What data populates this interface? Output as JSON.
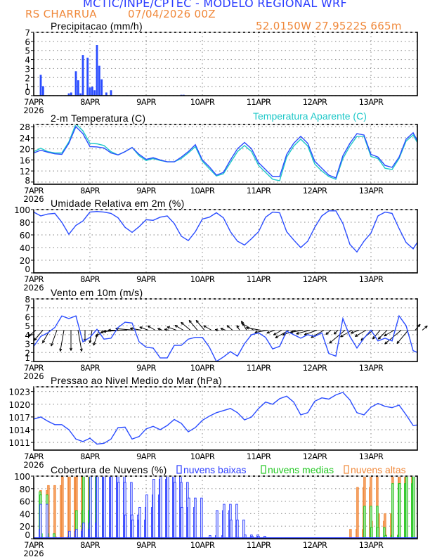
{
  "header": {
    "title": "MCTIC/INPE/CPTEC - MODELO REGIONAL WRF",
    "station": "RS CHARRUA",
    "run": "07/04/2026 00Z",
    "location": "52.0150W 27.9522S 665m"
  },
  "colors": {
    "title": "#2a3cff",
    "orange": "#f0883a",
    "series_blue": "#2a4cff",
    "apparent_cyan": "#1ec8c8",
    "low_clouds": "#2a3cff",
    "mid_clouds": "#22c822",
    "high_clouds": "#f0883a",
    "grid": "#9a9a9a"
  },
  "x_axis": {
    "tick_labels": [
      "7APR",
      "8APR",
      "9APR",
      "10APR",
      "11APR",
      "12APR",
      "13APR"
    ],
    "year": "2026"
  },
  "times": [
    "07APR 00Z",
    "07APR 03Z",
    "07APR 06Z",
    "07APR 09Z",
    "07APR 12Z",
    "07APR 15Z",
    "07APR 18Z",
    "07APR 21Z",
    "08APR 00Z",
    "08APR 03Z",
    "08APR 06Z",
    "08APR 09Z",
    "08APR 12Z",
    "08APR 15Z",
    "08APR 18Z",
    "08APR 21Z",
    "09APR 00Z",
    "09APR 03Z",
    "09APR 06Z",
    "09APR 09Z",
    "09APR 12Z",
    "09APR 15Z",
    "09APR 18Z",
    "09APR 21Z",
    "10APR 00Z",
    "10APR 03Z",
    "10APR 06Z",
    "10APR 09Z",
    "10APR 12Z",
    "10APR 15Z",
    "10APR 18Z",
    "10APR 21Z",
    "11APR 00Z",
    "11APR 03Z",
    "11APR 06Z",
    "11APR 09Z",
    "11APR 12Z",
    "11APR 15Z",
    "11APR 18Z",
    "11APR 21Z",
    "12APR 00Z",
    "12APR 03Z",
    "12APR 06Z",
    "12APR 09Z",
    "12APR 12Z",
    "12APR 15Z",
    "12APR 18Z",
    "12APR 21Z",
    "13APR 00Z",
    "13APR 03Z",
    "13APR 06Z",
    "13APR 09Z",
    "13APR 12Z",
    "13APR 15Z",
    "13APR 18Z",
    "13APR 21Z"
  ],
  "chart_data": [
    {
      "id": "precip",
      "type": "bar",
      "title": "Precipitacao (mm/h)",
      "ylim": [
        0,
        7
      ],
      "yticks": [
        "0",
        "1",
        "2",
        "3",
        "4",
        "5",
        "6",
        "7"
      ],
      "grid": true,
      "points": [
        {
          "time": "07APR 03Z",
          "value": 2.3
        },
        {
          "time": "07APR 04Z",
          "value": 1.05
        },
        {
          "time": "07APR 15Z",
          "value": 0.25
        },
        {
          "time": "07APR 16Z",
          "value": 0.35
        },
        {
          "time": "07APR 18Z",
          "value": 2.7
        },
        {
          "time": "07APR 19Z",
          "value": 1.7
        },
        {
          "time": "07APR 20Z",
          "value": 0.25
        },
        {
          "time": "07APR 21Z",
          "value": 4.5
        },
        {
          "time": "07APR 23Z",
          "value": 4.2
        },
        {
          "time": "08APR 00Z",
          "value": 0.9
        },
        {
          "time": "08APR 01Z",
          "value": 1.0
        },
        {
          "time": "08APR 02Z",
          "value": 0.6
        },
        {
          "time": "08APR 03Z",
          "value": 5.6
        },
        {
          "time": "08APR 04Z",
          "value": 3.3
        },
        {
          "time": "08APR 05Z",
          "value": 1.8
        },
        {
          "time": "08APR 07Z",
          "value": 0.35
        },
        {
          "time": "08APR 09Z",
          "value": 0.6
        },
        {
          "time": "08APR 16Z",
          "value": 0.05
        },
        {
          "time": "09APR 15Z",
          "value": 0.1
        },
        {
          "time": "09APR 16Z",
          "value": 0.1
        }
      ]
    },
    {
      "id": "temperature",
      "type": "line",
      "title": "2-m Temperatura (C)",
      "ylim": [
        7.2,
        28.8
      ],
      "yticks": [
        "8",
        "12",
        "16",
        "20",
        "24",
        "28"
      ],
      "grid": true,
      "series": [
        {
          "name": "2-m Temperatura (C)",
          "color": "#2a4cff",
          "values": [
            18.5,
            19.5,
            18.8,
            18.2,
            18,
            22,
            28,
            25.5,
            20.8,
            20.7,
            20.3,
            18.5,
            17.8,
            19,
            20.5,
            18,
            16.2,
            16.8,
            16,
            15.3,
            15.3,
            17,
            19,
            21.5,
            16,
            13.5,
            10.5,
            11.5,
            16,
            20,
            22.3,
            20,
            15,
            12.5,
            10,
            10,
            18,
            22,
            24.5,
            22,
            15.5,
            13,
            10.5,
            9.5,
            17.5,
            22,
            25.5,
            25,
            18,
            17,
            14,
            13.3,
            17,
            23.5,
            25.8,
            21
          ]
        },
        {
          "name": "Temperatura Aparente (C)",
          "color": "#1ec8c8",
          "values": [
            19,
            20.2,
            19,
            18.5,
            18.5,
            22.5,
            29,
            26.5,
            22,
            21.8,
            21.2,
            19,
            17.8,
            19,
            20.5,
            17.5,
            15.8,
            16.5,
            15.8,
            15.3,
            15.3,
            16.5,
            18.5,
            20.8,
            15.5,
            12.8,
            10.2,
            11,
            15,
            19,
            21.2,
            19,
            14,
            11.5,
            9,
            8.5,
            17,
            21,
            23.5,
            21,
            14.5,
            12,
            10,
            9,
            16.5,
            21,
            24.5,
            24.5,
            17.2,
            16.5,
            13,
            12.5,
            16.5,
            22.8,
            25,
            20.5
          ]
        }
      ]
    },
    {
      "id": "humidity",
      "type": "line",
      "title": "Umidade Relativa em 2m (%)",
      "ylim": [
        0,
        100
      ],
      "yticks": [
        "0",
        "20",
        "40",
        "60",
        "80",
        "100"
      ],
      "grid": true,
      "series": [
        {
          "color": "#2a4cff",
          "values": [
            96,
            90,
            93,
            94,
            80,
            61,
            75,
            82,
            96,
            97,
            96,
            94,
            87,
            72,
            64,
            73,
            84,
            83,
            88,
            90,
            78,
            58,
            51,
            65,
            85,
            88,
            95,
            87,
            65,
            50,
            44,
            54,
            65,
            88,
            96,
            95,
            65,
            52,
            40,
            50,
            72,
            90,
            98,
            98,
            78,
            45,
            33,
            50,
            63,
            90,
            96,
            94,
            70,
            48,
            38,
            55
          ]
        }
      ]
    },
    {
      "id": "wind",
      "type": "line",
      "title": "Vento em 10m (m/s)",
      "ylim": [
        1,
        8
      ],
      "yticks": [
        "1",
        "2",
        "3",
        "4",
        "5",
        "6",
        "7",
        "8"
      ],
      "grid": true,
      "series": [
        {
          "color": "#2a4cff",
          "values": [
            2.7,
            3.8,
            4.2,
            4.8,
            6.1,
            5.8,
            6.1,
            3.2,
            3.7,
            4.6,
            3.5,
            3.6,
            4.8,
            5.4,
            5.3,
            3.2,
            2.6,
            2.5,
            1.4,
            1.4,
            2.8,
            2.8,
            3.5,
            3.7,
            3.7,
            2.6,
            1.0,
            1.5,
            2.1,
            1.6,
            3.0,
            4.0,
            4.2,
            3.7,
            2.4,
            2.7,
            4.4,
            4.0,
            3.6,
            4.0,
            3.8,
            4.2,
            1.9,
            1.6,
            5.8,
            3.8,
            2.5,
            3.6,
            4.5,
            3.3,
            3.6,
            3.3,
            6.1,
            5.0,
            2.2,
            1.9
          ]
        }
      ],
      "wind_direction_deg": [
        50,
        40,
        30,
        20,
        10,
        0,
        350,
        0,
        10,
        20,
        60,
        80,
        85,
        90,
        95,
        100,
        110,
        120,
        110,
        100,
        110,
        120,
        130,
        140,
        140,
        120,
        100,
        110,
        130,
        150,
        150,
        120,
        100,
        80,
        70,
        60,
        60,
        70,
        80,
        75,
        70,
        60,
        50,
        45,
        50,
        60,
        70,
        60,
        50,
        40,
        45,
        60,
        50,
        40,
        220,
        230
      ],
      "vector_baseline": 4.5
    },
    {
      "id": "pressure",
      "type": "line",
      "title": "Pressao ao Nivel Medio do Mar (hPa)",
      "ylim": [
        1009.2,
        1024.1
      ],
      "yticks": [
        "1011",
        "1014",
        "1017",
        "1020",
        "1023"
      ],
      "grid": true,
      "series": [
        {
          "color": "#2a4cff",
          "values": [
            1016.5,
            1017,
            1016,
            1015.2,
            1015.2,
            1014,
            1011.8,
            1011.2,
            1012,
            1010.6,
            1010.8,
            1011.8,
            1014.5,
            1014.6,
            1011.8,
            1012.4,
            1014.2,
            1014.8,
            1014,
            1015,
            1016.4,
            1015.5,
            1013.5,
            1014.5,
            1016.2,
            1017.2,
            1018,
            1018.5,
            1019,
            1018,
            1016.3,
            1017,
            1019,
            1020.5,
            1020,
            1021.3,
            1021.9,
            1020.5,
            1017.5,
            1018,
            1020.7,
            1021.5,
            1021.2,
            1022.2,
            1022.8,
            1021,
            1018,
            1017.5,
            1019.3,
            1020.2,
            1019.5,
            1019.2,
            1019.8,
            1017.5,
            1015,
            1015.2
          ]
        }
      ]
    },
    {
      "id": "clouds",
      "type": "bar",
      "title": "Cobertura de Nuvens (%)",
      "ylim": [
        0,
        100
      ],
      "yticks": [
        "0",
        "20",
        "40",
        "60",
        "80",
        "100"
      ],
      "grid": true,
      "legend": [
        "nuvens baixas",
        "nuvens medias",
        "nuvens altas"
      ],
      "series": [
        {
          "name": "nuvens altas",
          "color": "#f0883a",
          "values": [
            0,
            77,
            0,
            85,
            3,
            100,
            100,
            100,
            100,
            40,
            0,
            0,
            0,
            0,
            0,
            0,
            0,
            0,
            0,
            0,
            0,
            0,
            0,
            0,
            0,
            0,
            0,
            0,
            0,
            0,
            0,
            0,
            0,
            0,
            0,
            0,
            0,
            0,
            0,
            0,
            0,
            0,
            0,
            0,
            0,
            0,
            15,
            82,
            100,
            28,
            40,
            6,
            100,
            100,
            100,
            100
          ]
        },
        {
          "name": "nuvens medias",
          "color": "#22c822",
          "values": [
            75,
            70,
            8,
            0,
            0,
            0,
            6,
            45,
            100,
            100,
            10,
            0,
            0,
            0,
            0,
            0,
            0,
            0,
            0,
            0,
            0,
            0,
            0,
            0,
            0,
            0,
            0,
            0,
            0,
            0,
            0,
            0,
            0,
            0,
            0,
            0,
            0,
            0,
            0,
            0,
            0,
            0,
            0,
            0,
            0,
            0,
            0,
            0,
            52,
            18,
            0,
            5,
            88,
            88,
            100,
            100
          ]
        },
        {
          "name": "nuvens baixas",
          "color": "#2a3cff",
          "values": [
            15,
            55,
            2,
            0,
            0,
            0,
            12,
            15,
            25,
            100,
            100,
            100,
            100,
            90,
            38,
            30,
            50,
            70,
            95,
            100,
            100,
            90,
            50,
            65,
            1,
            1,
            5,
            45,
            55,
            30,
            2,
            6,
            4,
            0,
            0,
            0,
            0,
            0,
            0,
            0,
            0,
            0,
            0,
            0,
            0,
            0,
            0,
            0,
            0,
            0,
            0,
            0,
            0,
            0,
            0,
            0
          ]
        }
      ]
    }
  ]
}
